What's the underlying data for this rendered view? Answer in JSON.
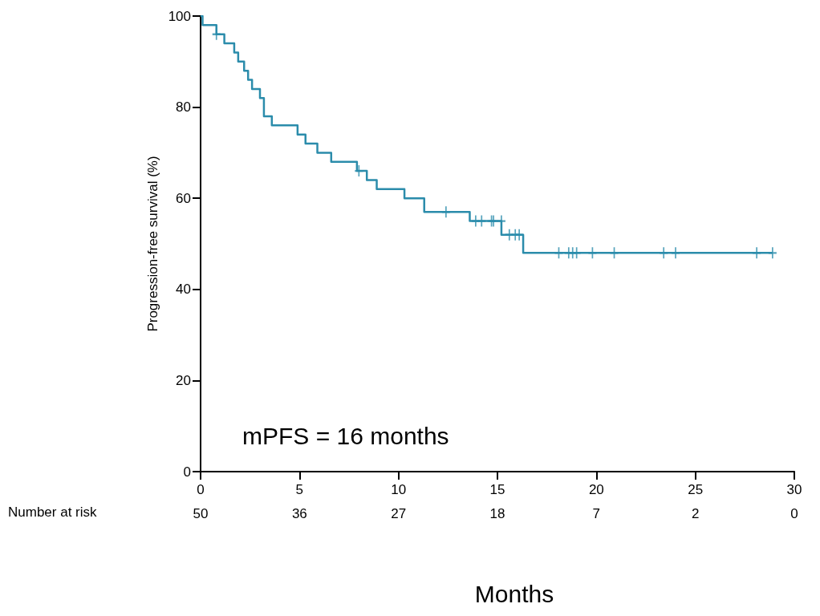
{
  "chart_data": {
    "type": "step",
    "xlabel": "Months",
    "ylabel": "Progression-free survival (%)",
    "xlim": [
      0,
      30
    ],
    "xticks": [
      0,
      5,
      10,
      15,
      20,
      25,
      30
    ],
    "ylim": [
      0,
      100
    ],
    "yticks": [
      0,
      20,
      40,
      60,
      80,
      100
    ],
    "grid": false,
    "line_style": "solid",
    "series": [
      {
        "color": "#2b8cab",
        "marker": "none",
        "x": [
          0,
          0.1,
          0.8,
          1.2,
          1.7,
          1.9,
          2.2,
          2.4,
          2.6,
          3.0,
          3.2,
          3.6,
          4.9,
          5.3,
          5.9,
          6.6,
          7.9,
          8.4,
          8.9,
          10.3,
          11.3,
          13.6,
          15.2,
          16.3,
          28.9
        ],
        "values": [
          100,
          98,
          96,
          94,
          92,
          90,
          88,
          86,
          84,
          82,
          78,
          76,
          74,
          72,
          70,
          68,
          66,
          64,
          62,
          60,
          57,
          55,
          52,
          48,
          48
        ]
      },
      {
        "type": "scatter",
        "color": "#2b8cab",
        "marker": "cross",
        "x": [
          0.8,
          8.0,
          12.4,
          13.9,
          14.2,
          14.7,
          14.8,
          15.2,
          15.6,
          15.9,
          16.1,
          18.1,
          18.6,
          18.8,
          19.0,
          19.8,
          20.9,
          23.4,
          24.0,
          28.1,
          28.9
        ],
        "values": [
          96,
          66,
          57,
          55,
          55,
          55,
          55,
          55,
          52,
          52,
          52,
          48,
          48,
          48,
          48,
          48,
          48,
          48,
          48,
          48,
          48
        ]
      }
    ],
    "annotations": [
      "mPFS = 16 months",
      "Number at risk",
      "50",
      "36",
      "27",
      "18",
      "7",
      "2",
      "0"
    ]
  }
}
